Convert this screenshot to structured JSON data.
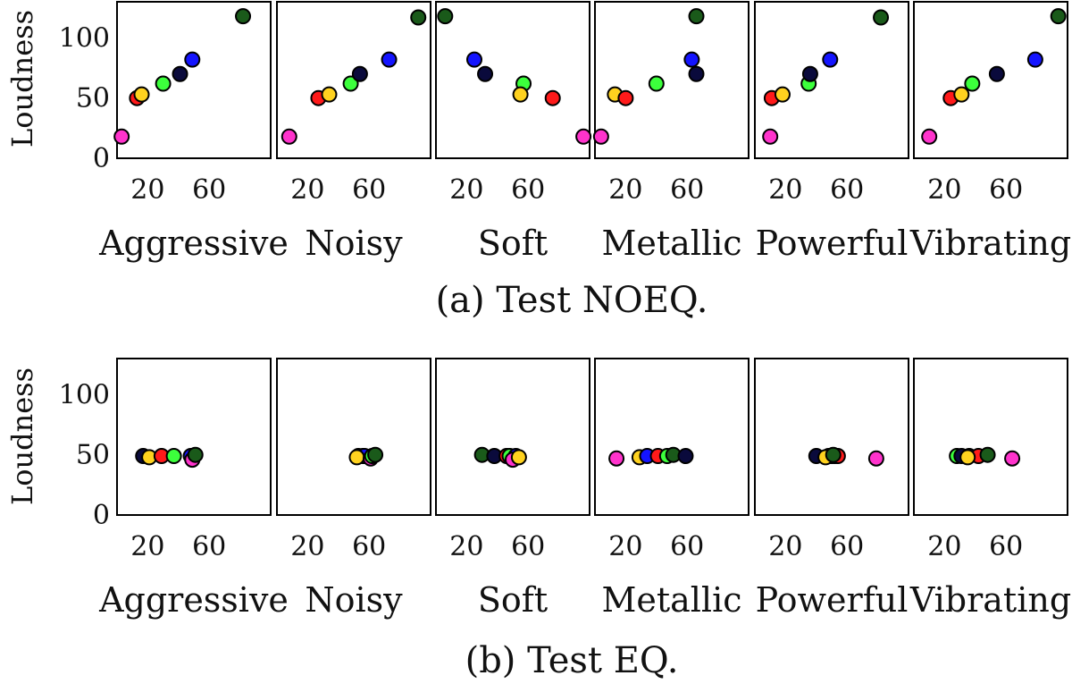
{
  "colors": {
    "magenta": "#ff33cc",
    "red": "#ff1a1a",
    "yellow": "#ffd21f",
    "lightgreen": "#3cff3c",
    "navy": "#0a0a3c",
    "blue": "#1414ff",
    "darkgreen": "#1a5a1a"
  },
  "chart_data": [
    {
      "type": "scatter",
      "title": "(a) Test NOEQ.",
      "ylabel": "Loudness",
      "ylim": [
        0,
        130
      ],
      "yticks": [
        0,
        50,
        100
      ],
      "xlim": [
        0,
        100
      ],
      "xticks": [
        20,
        60
      ],
      "panels": [
        {
          "xlabel": "Aggressive",
          "points": [
            {
              "series": "magenta",
              "x": 3,
              "y": 18
            },
            {
              "series": "red",
              "x": 13,
              "y": 50
            },
            {
              "series": "yellow",
              "x": 16,
              "y": 53
            },
            {
              "series": "lightgreen",
              "x": 30,
              "y": 62
            },
            {
              "series": "navy",
              "x": 41,
              "y": 70
            },
            {
              "series": "blue",
              "x": 49,
              "y": 82
            },
            {
              "series": "darkgreen",
              "x": 82,
              "y": 118
            }
          ]
        },
        {
          "xlabel": "Noisy",
          "points": [
            {
              "series": "magenta",
              "x": 8,
              "y": 18
            },
            {
              "series": "red",
              "x": 27,
              "y": 50
            },
            {
              "series": "yellow",
              "x": 34,
              "y": 53
            },
            {
              "series": "lightgreen",
              "x": 48,
              "y": 62
            },
            {
              "series": "navy",
              "x": 54,
              "y": 70
            },
            {
              "series": "blue",
              "x": 73,
              "y": 82
            },
            {
              "series": "darkgreen",
              "x": 92,
              "y": 117
            }
          ]
        },
        {
          "xlabel": "Soft",
          "points": [
            {
              "series": "darkgreen",
              "x": 6,
              "y": 118
            },
            {
              "series": "blue",
              "x": 25,
              "y": 82
            },
            {
              "series": "navy",
              "x": 32,
              "y": 70
            },
            {
              "series": "lightgreen",
              "x": 57,
              "y": 62
            },
            {
              "series": "yellow",
              "x": 55,
              "y": 53
            },
            {
              "series": "red",
              "x": 76,
              "y": 50
            },
            {
              "series": "magenta",
              "x": 96,
              "y": 18
            }
          ]
        },
        {
          "xlabel": "Metallic",
          "points": [
            {
              "series": "magenta",
              "x": 4,
              "y": 18
            },
            {
              "series": "yellow",
              "x": 13,
              "y": 53
            },
            {
              "series": "red",
              "x": 20,
              "y": 50
            },
            {
              "series": "lightgreen",
              "x": 40,
              "y": 62
            },
            {
              "series": "blue",
              "x": 63,
              "y": 82
            },
            {
              "series": "navy",
              "x": 66,
              "y": 70
            },
            {
              "series": "darkgreen",
              "x": 66,
              "y": 118
            }
          ]
        },
        {
          "xlabel": "Powerful",
          "points": [
            {
              "series": "magenta",
              "x": 10,
              "y": 18
            },
            {
              "series": "red",
              "x": 11,
              "y": 50
            },
            {
              "series": "yellow",
              "x": 18,
              "y": 53
            },
            {
              "series": "lightgreen",
              "x": 35,
              "y": 62
            },
            {
              "series": "navy",
              "x": 36,
              "y": 70
            },
            {
              "series": "blue",
              "x": 49,
              "y": 82
            },
            {
              "series": "darkgreen",
              "x": 82,
              "y": 117
            }
          ]
        },
        {
          "xlabel": "Vibrating",
          "points": [
            {
              "series": "magenta",
              "x": 10,
              "y": 18
            },
            {
              "series": "red",
              "x": 24,
              "y": 50
            },
            {
              "series": "yellow",
              "x": 31,
              "y": 53
            },
            {
              "series": "lightgreen",
              "x": 38,
              "y": 62
            },
            {
              "series": "navy",
              "x": 54,
              "y": 70
            },
            {
              "series": "blue",
              "x": 79,
              "y": 82
            },
            {
              "series": "darkgreen",
              "x": 94,
              "y": 118
            }
          ]
        }
      ]
    },
    {
      "type": "scatter",
      "title": "(b) Test EQ.",
      "ylabel": "Loudness",
      "ylim": [
        0,
        130
      ],
      "yticks": [
        0,
        50,
        100
      ],
      "xlim": [
        0,
        100
      ],
      "xticks": [
        20,
        60
      ],
      "panels": [
        {
          "xlabel": "Aggressive",
          "points": [
            {
              "series": "navy",
              "x": 17,
              "y": 49
            },
            {
              "series": "yellow",
              "x": 21,
              "y": 48
            },
            {
              "series": "red",
              "x": 29,
              "y": 49
            },
            {
              "series": "lightgreen",
              "x": 37,
              "y": 49
            },
            {
              "series": "blue",
              "x": 48,
              "y": 49
            },
            {
              "series": "magenta",
              "x": 49,
              "y": 46
            },
            {
              "series": "darkgreen",
              "x": 51,
              "y": 50
            }
          ]
        },
        {
          "xlabel": "Noisy",
          "points": [
            {
              "series": "navy",
              "x": 53,
              "y": 49
            },
            {
              "series": "red",
              "x": 56,
              "y": 49
            },
            {
              "series": "blue",
              "x": 57,
              "y": 49
            },
            {
              "series": "yellow",
              "x": 52,
              "y": 48
            },
            {
              "series": "magenta",
              "x": 61,
              "y": 47
            },
            {
              "series": "lightgreen",
              "x": 62,
              "y": 49
            },
            {
              "series": "darkgreen",
              "x": 64,
              "y": 50
            }
          ]
        },
        {
          "xlabel": "Soft",
          "points": [
            {
              "series": "darkgreen",
              "x": 30,
              "y": 50
            },
            {
              "series": "navy",
              "x": 38,
              "y": 49
            },
            {
              "series": "red",
              "x": 46,
              "y": 49
            },
            {
              "series": "lightgreen",
              "x": 48,
              "y": 49
            },
            {
              "series": "blue",
              "x": 52,
              "y": 49
            },
            {
              "series": "magenta",
              "x": 50,
              "y": 46
            },
            {
              "series": "yellow",
              "x": 54,
              "y": 48
            }
          ]
        },
        {
          "xlabel": "Metallic",
          "points": [
            {
              "series": "magenta",
              "x": 14,
              "y": 47
            },
            {
              "series": "yellow",
              "x": 29,
              "y": 48
            },
            {
              "series": "blue",
              "x": 34,
              "y": 49
            },
            {
              "series": "red",
              "x": 41,
              "y": 49
            },
            {
              "series": "lightgreen",
              "x": 47,
              "y": 49
            },
            {
              "series": "darkgreen",
              "x": 51,
              "y": 50
            },
            {
              "series": "navy",
              "x": 59,
              "y": 49
            }
          ]
        },
        {
          "xlabel": "Powerful",
          "points": [
            {
              "series": "navy",
              "x": 40,
              "y": 49
            },
            {
              "series": "blue",
              "x": 48,
              "y": 49
            },
            {
              "series": "lightgreen",
              "x": 50,
              "y": 49
            },
            {
              "series": "magenta",
              "x": 52,
              "y": 49
            },
            {
              "series": "red",
              "x": 54,
              "y": 49
            },
            {
              "series": "yellow",
              "x": 46,
              "y": 48
            },
            {
              "series": "darkgreen",
              "x": 51,
              "y": 50
            },
            {
              "series": "magenta",
              "x": 79,
              "y": 47
            }
          ]
        },
        {
          "xlabel": "Vibrating",
          "points": [
            {
              "series": "lightgreen",
              "x": 28,
              "y": 49
            },
            {
              "series": "navy",
              "x": 31,
              "y": 49
            },
            {
              "series": "blue",
              "x": 36,
              "y": 49
            },
            {
              "series": "red",
              "x": 42,
              "y": 49
            },
            {
              "series": "yellow",
              "x": 35,
              "y": 48
            },
            {
              "series": "darkgreen",
              "x": 48,
              "y": 50
            },
            {
              "series": "magenta",
              "x": 64,
              "y": 47
            }
          ]
        }
      ]
    }
  ]
}
